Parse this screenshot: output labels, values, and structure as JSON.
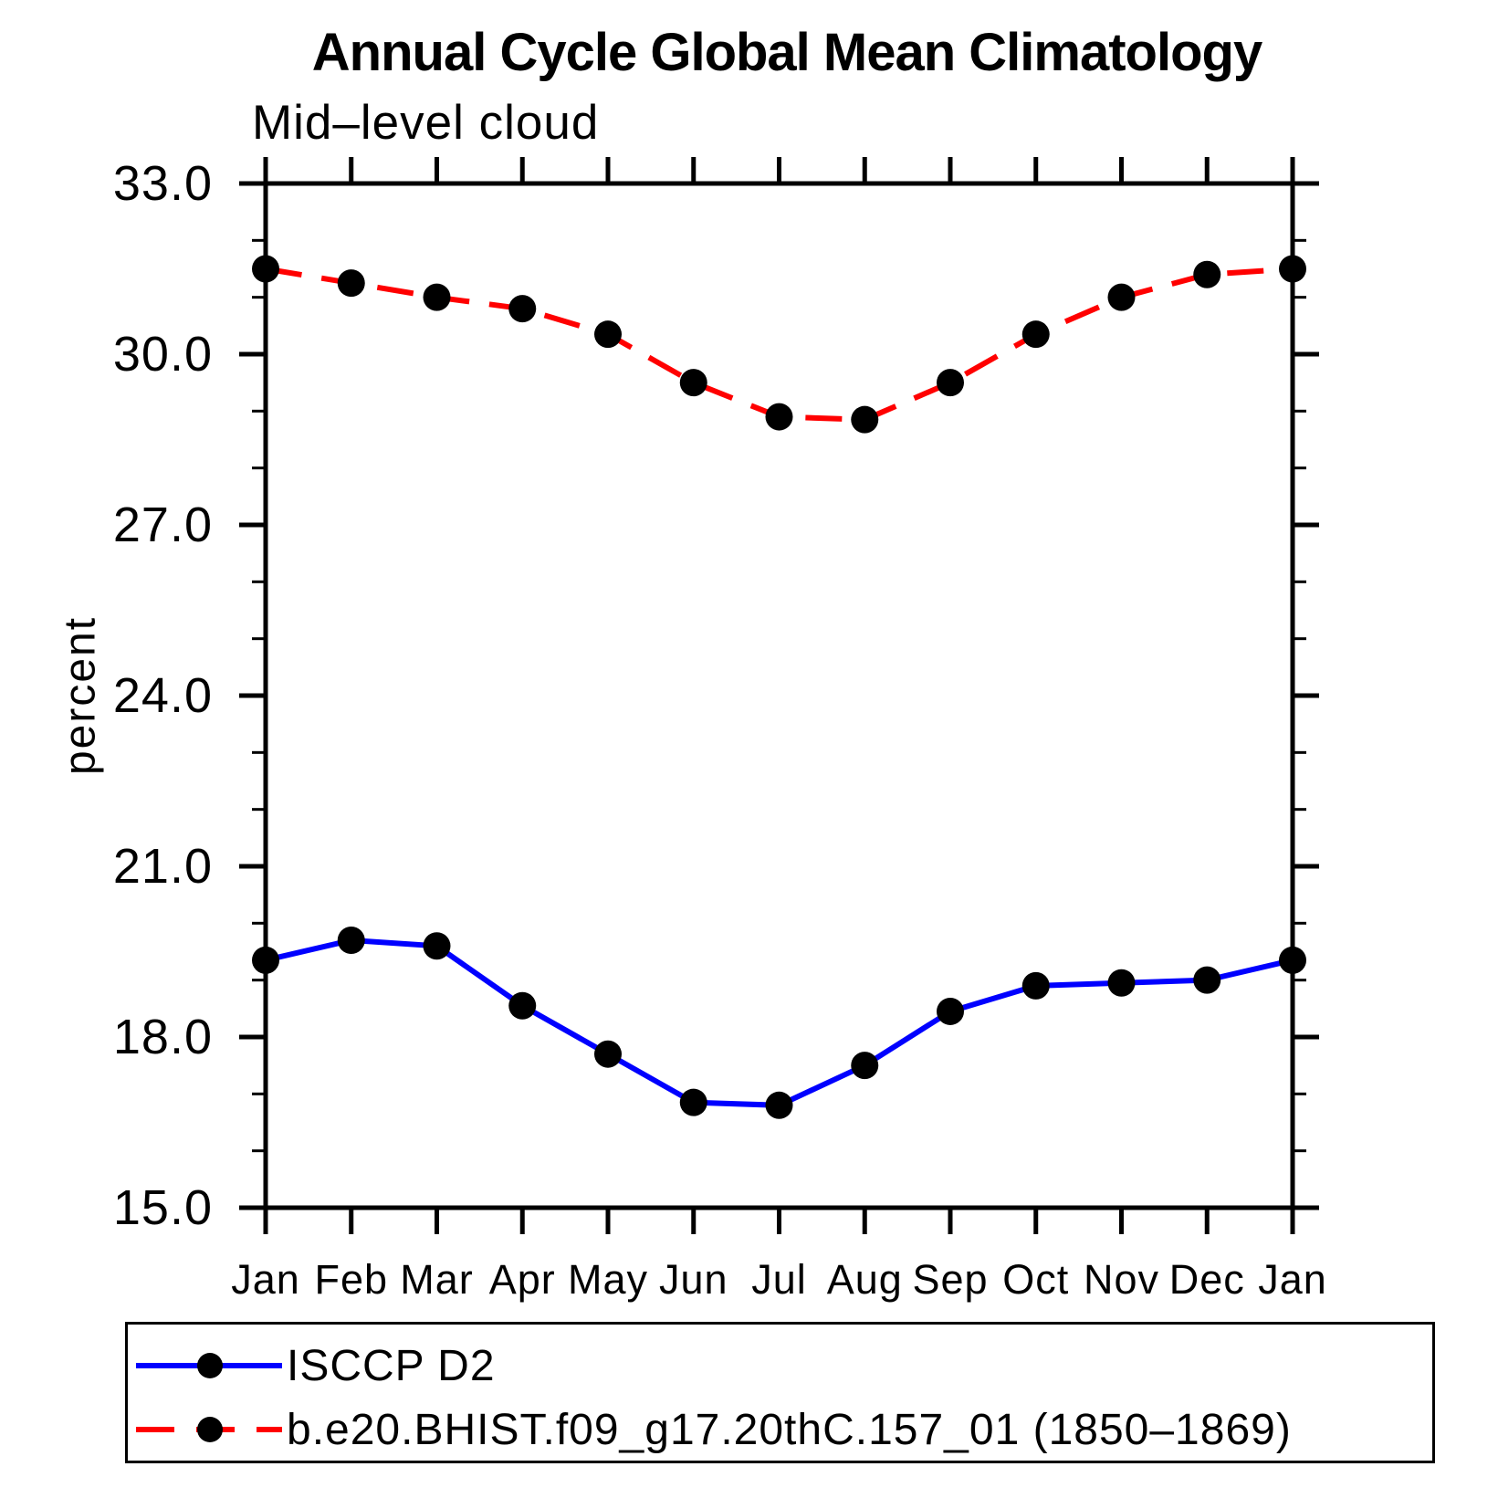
{
  "title": "Annual Cycle Global Mean Climatology",
  "subtitle": "Mid–level cloud",
  "ylabel": "percent",
  "colors": {
    "axis": "#000000",
    "marker": "#000000",
    "obs_line": "#0000ff",
    "model_line": "#ff0000",
    "background": "#ffffff"
  },
  "chart_data": {
    "type": "line",
    "title": "Annual Cycle Global Mean Climatology",
    "subtitle": "Mid–level cloud",
    "xlabel": "",
    "ylabel": "percent",
    "x_categories": [
      "Jan",
      "Feb",
      "Mar",
      "Apr",
      "May",
      "Jun",
      "Jul",
      "Aug",
      "Sep",
      "Oct",
      "Nov",
      "Dec",
      "Jan"
    ],
    "ylim": [
      15.0,
      33.0
    ],
    "ytick_major": [
      15,
      18,
      21,
      24,
      27,
      30,
      33
    ],
    "ytick_labels": [
      "15.0",
      "18.0",
      "21.0",
      "24.0",
      "27.0",
      "30.0",
      "33.0"
    ],
    "ytick_minor_step": 1,
    "grid": "off",
    "legend_position": "bottom",
    "series": [
      {
        "name": "ISCCP D2",
        "color": "#0000ff",
        "line_style": "solid",
        "marker": "filled-circle",
        "marker_color": "#000000",
        "values": [
          19.35,
          19.7,
          19.6,
          18.55,
          17.7,
          16.85,
          16.8,
          17.5,
          18.45,
          18.9,
          18.95,
          19.0,
          19.35
        ]
      },
      {
        "name": "b.e20.BHIST.f09_g17.20thC.157_01 (1850–1869)",
        "color": "#ff0000",
        "line_style": "dashed",
        "marker": "filled-circle",
        "marker_color": "#000000",
        "values": [
          31.5,
          31.25,
          31.0,
          30.8,
          30.35,
          29.5,
          28.9,
          28.85,
          29.5,
          30.35,
          31.0,
          31.4,
          31.5
        ]
      }
    ]
  }
}
